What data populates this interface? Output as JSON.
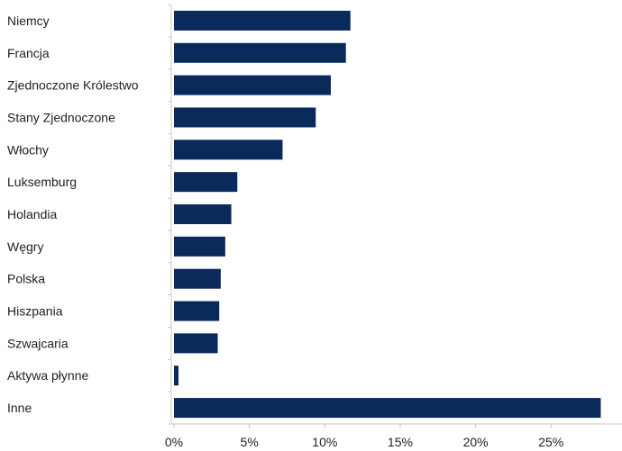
{
  "chart_data": {
    "type": "bar",
    "orientation": "horizontal",
    "categories": [
      "Niemcy",
      "Francja",
      "Zjednoczone Królestwo",
      "Stany Zjednoczone",
      "Włochy",
      "Luksemburg",
      "Holandia",
      "Węgry",
      "Polska",
      "Hiszpania",
      "Szwajcaria",
      "Aktywa płynne",
      "Inne"
    ],
    "values": [
      11.7,
      11.4,
      10.4,
      9.4,
      7.2,
      4.2,
      3.8,
      3.4,
      3.1,
      3.0,
      2.9,
      0.3,
      28.3
    ],
    "xlim": [
      0,
      30
    ],
    "xticks": [
      0,
      5,
      10,
      15,
      20,
      25
    ],
    "xtick_labels": [
      "0%",
      "5%",
      "10%",
      "15%",
      "20%",
      "25%"
    ],
    "grid": false,
    "colors": {
      "bar": "#0b2a5c",
      "axis": "#c8c8c8"
    }
  }
}
